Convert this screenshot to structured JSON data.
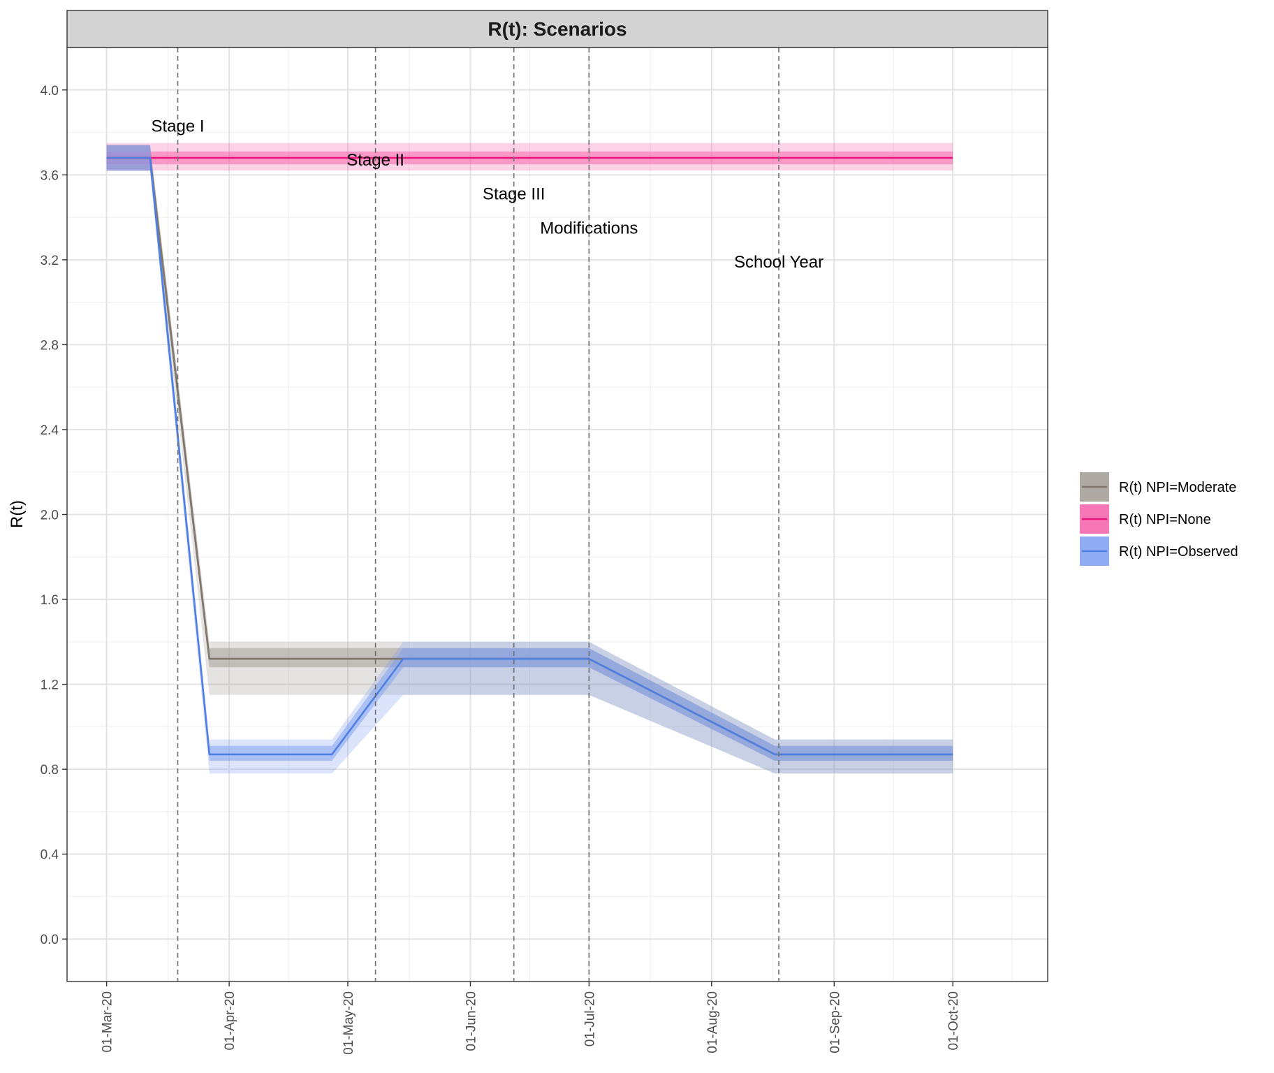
{
  "chart_data": {
    "type": "area",
    "title": "R(t): Scenarios",
    "xlabel": "",
    "ylabel": "R(t)",
    "x_ticks": [
      "2020-03-01",
      "2020-04-01",
      "2020-05-01",
      "2020-06-01",
      "2020-07-01",
      "2020-08-01",
      "2020-09-01",
      "2020-10-01"
    ],
    "x_tick_labels": [
      "01-Mar-20",
      "01-Apr-20",
      "01-May-20",
      "01-Jun-20",
      "01-Jul-20",
      "01-Aug-20",
      "01-Sep-20",
      "01-Oct-20"
    ],
    "xlim": [
      "2020-02-20",
      "2020-10-25"
    ],
    "y_ticks": [
      0.0,
      0.4,
      0.8,
      1.2,
      1.6,
      2.0,
      2.4,
      2.8,
      3.2,
      3.6,
      4.0
    ],
    "y_tick_labels": [
      "0.0",
      "0.4",
      "0.8",
      "1.2",
      "1.6",
      "2.0",
      "2.4",
      "2.8",
      "3.2",
      "3.6",
      "4.0"
    ],
    "ylim": [
      -0.2,
      4.2
    ],
    "grid": true,
    "legend_position": "right",
    "series": [
      {
        "name": "R(t) NPI=Moderate",
        "color": "#7f766c",
        "fill": "#a09a92",
        "x": [
          "2020-03-01",
          "2020-03-12",
          "2020-03-27",
          "2020-05-15",
          "2020-07-01",
          "2020-08-17",
          "2020-10-01"
        ],
        "y": [
          3.68,
          3.68,
          1.32,
          1.32,
          1.32,
          0.87,
          0.87
        ],
        "inner_lower": [
          3.62,
          3.62,
          1.28,
          1.28,
          1.28,
          0.84,
          0.84
        ],
        "inner_upper": [
          3.74,
          3.74,
          1.37,
          1.37,
          1.37,
          0.91,
          0.91
        ],
        "outer_lower": [
          3.62,
          3.62,
          1.15,
          1.15,
          1.15,
          0.78,
          0.78
        ],
        "outer_upper": [
          3.74,
          3.74,
          1.4,
          1.4,
          1.4,
          0.94,
          0.94
        ]
      },
      {
        "name": "R(t) NPI=None",
        "color": "#e8167c",
        "fill": "#f35fa9",
        "x": [
          "2020-03-01",
          "2020-10-01"
        ],
        "y": [
          3.68,
          3.68
        ],
        "inner_lower": [
          3.65,
          3.65
        ],
        "inner_upper": [
          3.71,
          3.71
        ],
        "outer_lower": [
          3.62,
          3.62
        ],
        "outer_upper": [
          3.75,
          3.75
        ]
      },
      {
        "name": "R(t) NPI=Observed",
        "color": "#4f7fe0",
        "fill": "#7c9df0",
        "x": [
          "2020-03-01",
          "2020-03-12",
          "2020-03-27",
          "2020-04-27",
          "2020-05-15",
          "2020-07-01",
          "2020-08-17",
          "2020-10-01"
        ],
        "y": [
          3.68,
          3.68,
          0.87,
          0.87,
          1.32,
          1.32,
          0.87,
          0.87
        ],
        "inner_lower": [
          3.62,
          3.62,
          0.84,
          0.84,
          1.28,
          1.28,
          0.84,
          0.84
        ],
        "inner_upper": [
          3.74,
          3.74,
          0.91,
          0.91,
          1.37,
          1.37,
          0.91,
          0.91
        ],
        "outer_lower": [
          3.62,
          3.62,
          0.78,
          0.78,
          1.15,
          1.15,
          0.78,
          0.78
        ],
        "outer_upper": [
          3.74,
          3.74,
          0.94,
          0.94,
          1.4,
          1.4,
          0.94,
          0.94
        ]
      }
    ],
    "vlines": [
      {
        "x": "2020-03-19",
        "label": "Stage I",
        "label_y": 3.83
      },
      {
        "x": "2020-05-08",
        "label": "Stage II",
        "label_y": 3.67
      },
      {
        "x": "2020-06-12",
        "label": "Stage III",
        "label_y": 3.51
      },
      {
        "x": "2020-07-01",
        "label": "Modifications",
        "label_y": 3.35
      },
      {
        "x": "2020-08-18",
        "label": "School Year",
        "label_y": 3.19
      }
    ]
  }
}
